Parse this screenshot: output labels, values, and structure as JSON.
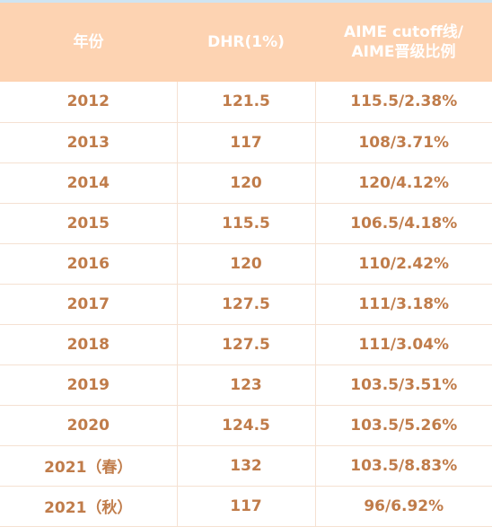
{
  "table": {
    "headers": {
      "year": "年份",
      "dhr": "DHR(1%)",
      "aime_line1": "AIME cutoff线/",
      "aime_line2": "AIME晋级比例"
    },
    "rows": [
      {
        "year": "2012",
        "dhr": "121.5",
        "aime": "115.5/2.38%"
      },
      {
        "year": "2013",
        "dhr": "117",
        "aime": "108/3.71%"
      },
      {
        "year": "2014",
        "dhr": "120",
        "aime": "120/4.12%"
      },
      {
        "year": "2015",
        "dhr": "115.5",
        "aime": "106.5/4.18%"
      },
      {
        "year": "2016",
        "dhr": "120",
        "aime": "110/2.42%"
      },
      {
        "year": "2017",
        "dhr": "127.5",
        "aime": "111/3.18%"
      },
      {
        "year": "2018",
        "dhr": "127.5",
        "aime": "111/3.04%"
      },
      {
        "year": "2019",
        "dhr": "123",
        "aime": "103.5/3.51%"
      },
      {
        "year": "2020",
        "dhr": "124.5",
        "aime": "103.5/5.26%"
      },
      {
        "year": "2021（春）",
        "dhr": "132",
        "aime": "103.5/8.83%"
      },
      {
        "year": "2021（秋）",
        "dhr": "117",
        "aime": "96/6.92%"
      }
    ]
  },
  "colors": {
    "header_bg": "#fdd3b2",
    "header_text": "#ffffff",
    "cell_text": "#c07c4a",
    "grid_line": "#f5e1d2"
  }
}
